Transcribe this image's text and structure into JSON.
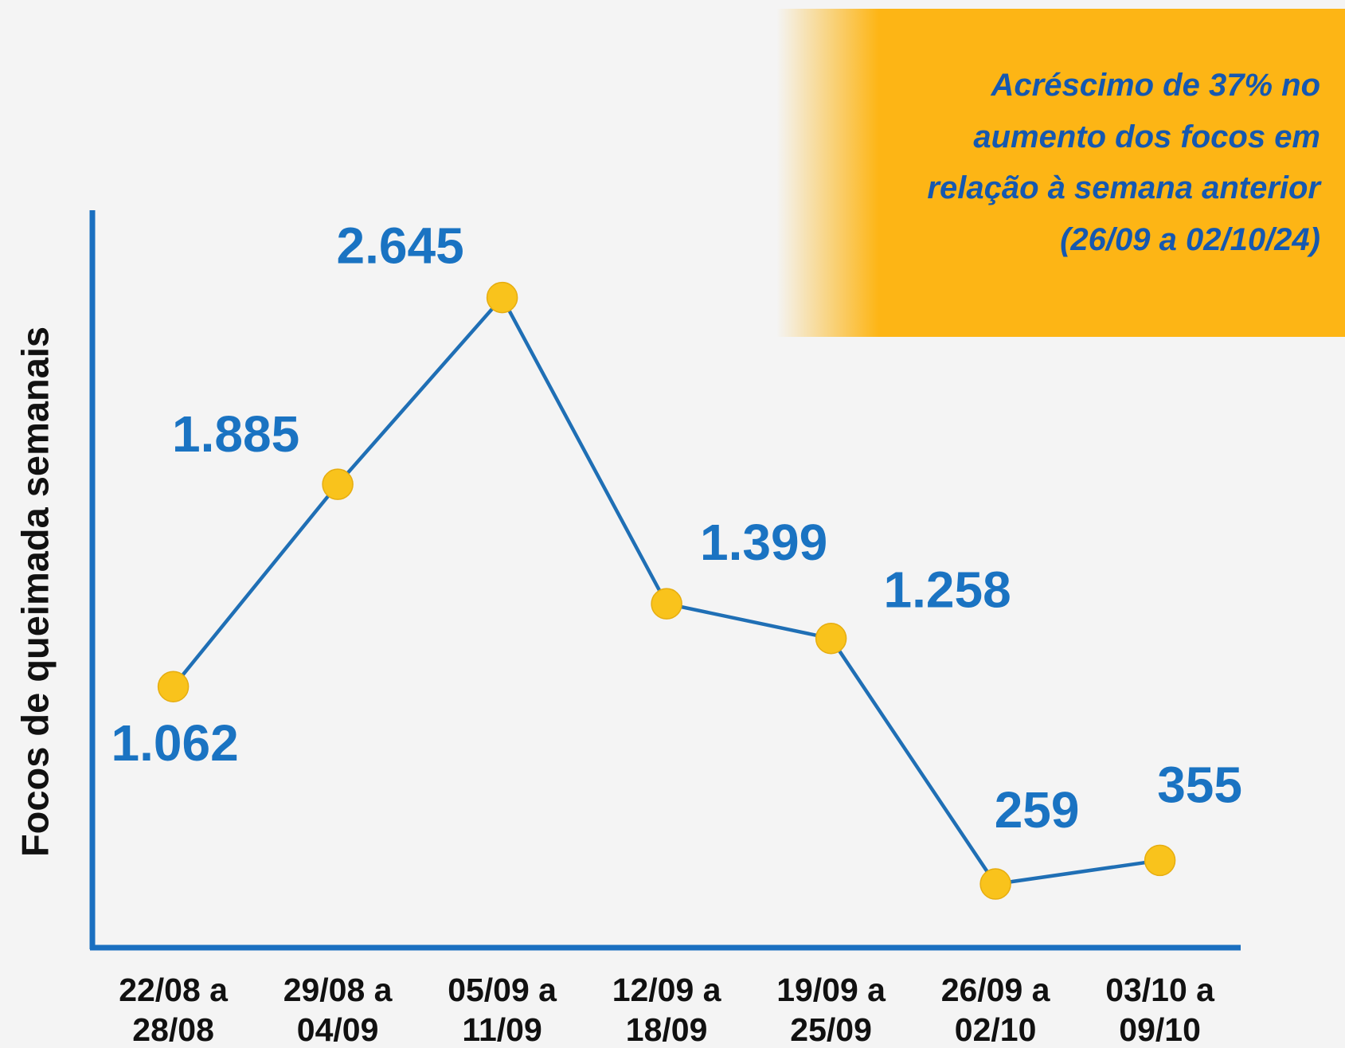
{
  "chart_data": {
    "type": "line",
    "y_label": "Focos de queimada semanais",
    "annotation": "Acréscimo de 37% no\naumento dos focos em\nrelação à semana anterior\n(26/09 a 02/10/24)",
    "categories": [
      "22/08 a\n28/08",
      "29/08 a\n04/09",
      "05/09 a\n11/09",
      "12/09 a\n18/09",
      "19/09 a\n25/09",
      "26/09 a\n02/10",
      "03/10 a\n09/10"
    ],
    "series": [
      {
        "name": "Focos",
        "color": "#1f6fb5",
        "marker_color": "#f9c31c",
        "values": [
          1062,
          1885,
          2645,
          1399,
          1258,
          259,
          355
        ],
        "value_labels": [
          "1.062",
          "1.885",
          "2.645",
          "1.399",
          "1.258",
          "259",
          "355"
        ]
      }
    ],
    "ylim": [
      0,
      3000
    ],
    "grid": false
  }
}
